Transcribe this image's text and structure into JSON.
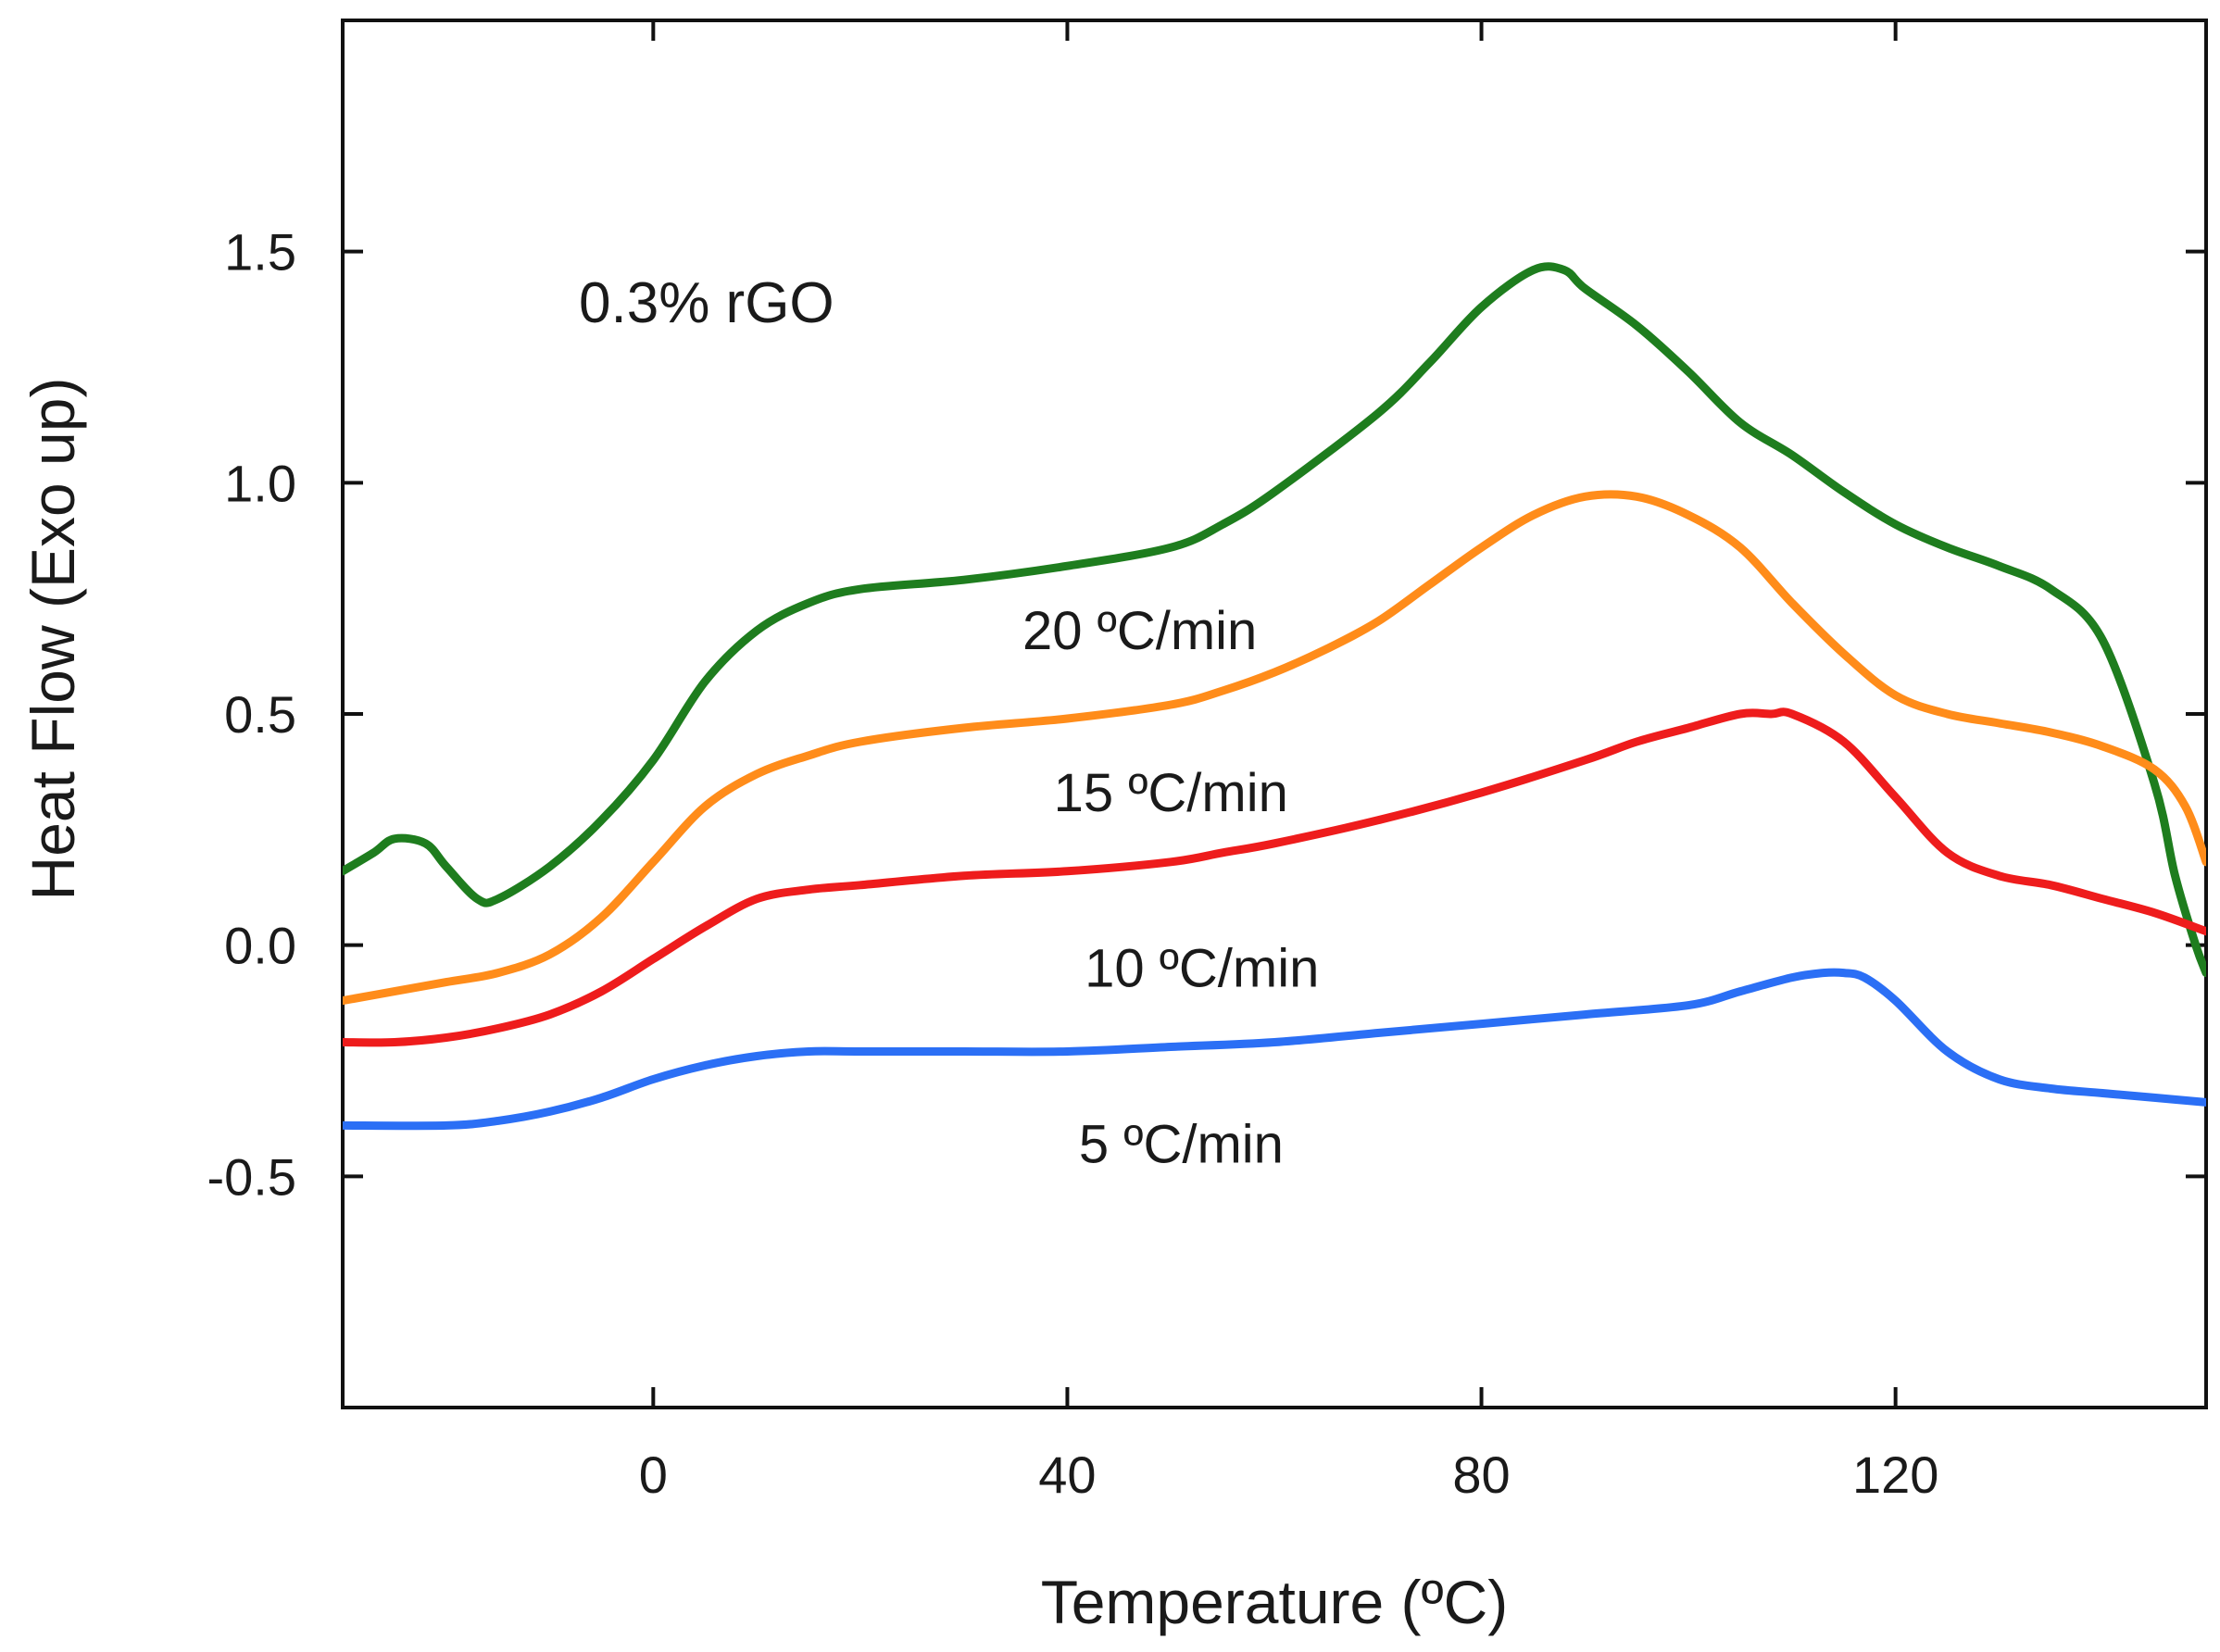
{
  "chart_data": {
    "type": "line",
    "title": "",
    "annotation": "0.3% rGO",
    "xlabel": "Temperature (ºC)",
    "ylabel": "Heat Flow (Exo up)",
    "xlim": [
      -30,
      150
    ],
    "ylim": [
      -1.0,
      2.0
    ],
    "xticks": [
      0,
      40,
      80,
      120
    ],
    "xtick_labels": [
      "0",
      "40",
      "80",
      "120"
    ],
    "yticks": [
      -0.5,
      0.0,
      0.5,
      1.0,
      1.5
    ],
    "ytick_labels": [
      "-0.5",
      "0.0",
      "0.5",
      "1.0",
      "1.5"
    ],
    "grid": false,
    "series": [
      {
        "name": "20 ºC/min",
        "color": "#1e7d1e",
        "x": [
          -30,
          -27,
          -25,
          -22,
          -20,
          -17,
          -15,
          -10,
          -5,
          0,
          5,
          10,
          15,
          20,
          30,
          40,
          50,
          55,
          60,
          70,
          75,
          80,
          85,
          88,
          90,
          95,
          100,
          105,
          110,
          115,
          120,
          125,
          130,
          135,
          140,
          145,
          147,
          149,
          150
        ],
        "y": [
          0.16,
          0.2,
          0.23,
          0.22,
          0.17,
          0.1,
          0.1,
          0.17,
          0.27,
          0.4,
          0.57,
          0.68,
          0.74,
          0.77,
          0.79,
          0.82,
          0.86,
          0.91,
          0.98,
          1.15,
          1.26,
          1.38,
          1.46,
          1.46,
          1.42,
          1.34,
          1.24,
          1.13,
          1.06,
          0.98,
          0.91,
          0.86,
          0.82,
          0.77,
          0.66,
          0.35,
          0.15,
          0.0,
          -0.06
        ]
      },
      {
        "name": "15 ºC/min",
        "color": "#ff8c1a",
        "x": [
          -30,
          -25,
          -20,
          -15,
          -10,
          -5,
          0,
          5,
          10,
          15,
          20,
          30,
          40,
          50,
          55,
          60,
          65,
          70,
          75,
          80,
          85,
          90,
          95,
          100,
          105,
          110,
          115,
          120,
          125,
          130,
          135,
          140,
          145,
          148,
          150
        ],
        "y": [
          -0.12,
          -0.1,
          -0.08,
          -0.06,
          -0.02,
          0.06,
          0.18,
          0.3,
          0.37,
          0.41,
          0.44,
          0.47,
          0.49,
          0.52,
          0.55,
          0.59,
          0.64,
          0.7,
          0.78,
          0.86,
          0.93,
          0.97,
          0.97,
          0.93,
          0.86,
          0.74,
          0.63,
          0.54,
          0.5,
          0.48,
          0.46,
          0.43,
          0.38,
          0.3,
          0.18
        ]
      },
      {
        "name": "10 ºC/min",
        "color": "#ee1c1c",
        "x": [
          -30,
          -25,
          -20,
          -15,
          -10,
          -5,
          0,
          5,
          10,
          15,
          20,
          30,
          40,
          50,
          55,
          60,
          70,
          80,
          90,
          95,
          100,
          105,
          108,
          110,
          115,
          120,
          125,
          130,
          135,
          140,
          145,
          150
        ],
        "y": [
          -0.21,
          -0.21,
          -0.2,
          -0.18,
          -0.15,
          -0.1,
          -0.03,
          0.04,
          0.1,
          0.12,
          0.13,
          0.15,
          0.16,
          0.18,
          0.2,
          0.22,
          0.27,
          0.33,
          0.4,
          0.44,
          0.47,
          0.5,
          0.5,
          0.5,
          0.44,
          0.32,
          0.2,
          0.15,
          0.13,
          0.1,
          0.07,
          0.03
        ]
      },
      {
        "name": "5 ºC/min",
        "color": "#2b6ff5",
        "x": [
          -30,
          -20,
          -15,
          -10,
          -5,
          0,
          5,
          10,
          15,
          20,
          30,
          40,
          50,
          60,
          70,
          80,
          90,
          100,
          105,
          110,
          113,
          115,
          117,
          120,
          125,
          130,
          135,
          140,
          145,
          150
        ],
        "y": [
          -0.39,
          -0.39,
          -0.38,
          -0.36,
          -0.33,
          -0.29,
          -0.26,
          -0.24,
          -0.23,
          -0.23,
          -0.23,
          -0.23,
          -0.22,
          -0.21,
          -0.19,
          -0.17,
          -0.15,
          -0.13,
          -0.1,
          -0.07,
          -0.06,
          -0.06,
          -0.07,
          -0.12,
          -0.23,
          -0.29,
          -0.31,
          -0.32,
          -0.33,
          -0.34
        ]
      }
    ],
    "series_labels": [
      {
        "text": "20 ºC/min",
        "x": 47,
        "y": 0.68
      },
      {
        "text": "15 ºC/min",
        "x": 50,
        "y": 0.33
      },
      {
        "text": "10 ºC/min",
        "x": 53,
        "y": -0.05
      },
      {
        "text": "5 ºC/min",
        "x": 51,
        "y": -0.43
      }
    ]
  }
}
